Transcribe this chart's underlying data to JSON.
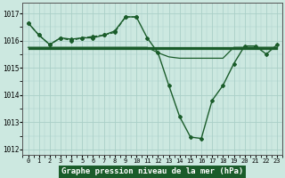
{
  "title": "Graphe pression niveau de la mer (hPa)",
  "background_color": "#cce8e0",
  "grid_color": "#aacfc8",
  "line_color": "#1a5c2a",
  "x_ticks": [
    0,
    1,
    2,
    3,
    4,
    5,
    6,
    7,
    8,
    9,
    10,
    11,
    12,
    13,
    14,
    15,
    16,
    17,
    18,
    19,
    20,
    21,
    22,
    23
  ],
  "ylim": [
    1011.8,
    1017.4
  ],
  "yticks": [
    1012,
    1013,
    1014,
    1015,
    1016,
    1017
  ],
  "line_dotted_x": [
    0,
    1,
    2,
    3,
    4,
    5,
    6,
    7,
    8,
    9,
    10
  ],
  "line_dotted_y": [
    1016.65,
    1016.2,
    1015.85,
    1016.1,
    1016.0,
    1016.1,
    1016.15,
    1016.2,
    1016.3,
    1016.87,
    1016.87
  ],
  "line_main_x": [
    0,
    1,
    2,
    3,
    4,
    5,
    6,
    7,
    8,
    9,
    10,
    11,
    12,
    13,
    14,
    15,
    16,
    17,
    18,
    19,
    20,
    21,
    22,
    23
  ],
  "line_main_y": [
    1016.65,
    1016.2,
    1015.85,
    1016.1,
    1016.05,
    1016.1,
    1016.1,
    1016.2,
    1016.35,
    1016.87,
    1016.87,
    1016.1,
    1015.55,
    1014.35,
    1013.2,
    1012.45,
    1012.4,
    1013.8,
    1014.35,
    1015.15,
    1015.8,
    1015.8,
    1015.5,
    1015.85
  ],
  "line_flat1_y": [
    1015.75,
    1015.75,
    1015.75,
    1015.75,
    1015.75,
    1015.75,
    1015.75,
    1015.75,
    1015.75,
    1015.75,
    1015.75,
    1015.75,
    1015.75,
    1015.75,
    1015.75,
    1015.75,
    1015.75,
    1015.75,
    1015.75,
    1015.75,
    1015.75,
    1015.75,
    1015.75,
    1015.75
  ],
  "line_flat2_y": [
    1015.72,
    1015.72,
    1015.72,
    1015.72,
    1015.72,
    1015.72,
    1015.72,
    1015.72,
    1015.72,
    1015.72,
    1015.72,
    1015.72,
    1015.72,
    1015.72,
    1015.72,
    1015.72,
    1015.72,
    1015.72,
    1015.72,
    1015.72,
    1015.72,
    1015.72,
    1015.72,
    1015.72
  ],
  "line_flat3_y": [
    1015.69,
    1015.69,
    1015.69,
    1015.69,
    1015.69,
    1015.69,
    1015.69,
    1015.69,
    1015.69,
    1015.69,
    1015.69,
    1015.69,
    1015.69,
    1015.69,
    1015.69,
    1015.69,
    1015.69,
    1015.69,
    1015.69,
    1015.69,
    1015.69,
    1015.69,
    1015.69,
    1015.69
  ],
  "line_flat4_y": [
    1015.75,
    1015.75,
    1015.75,
    1015.75,
    1015.75,
    1015.75,
    1015.75,
    1015.75,
    1015.75,
    1015.75,
    1015.75,
    1015.75,
    1015.55,
    1015.4,
    1015.35,
    1015.35,
    1015.35,
    1015.35,
    1015.35,
    1015.75,
    1015.75,
    1015.75,
    1015.75,
    1015.75
  ]
}
